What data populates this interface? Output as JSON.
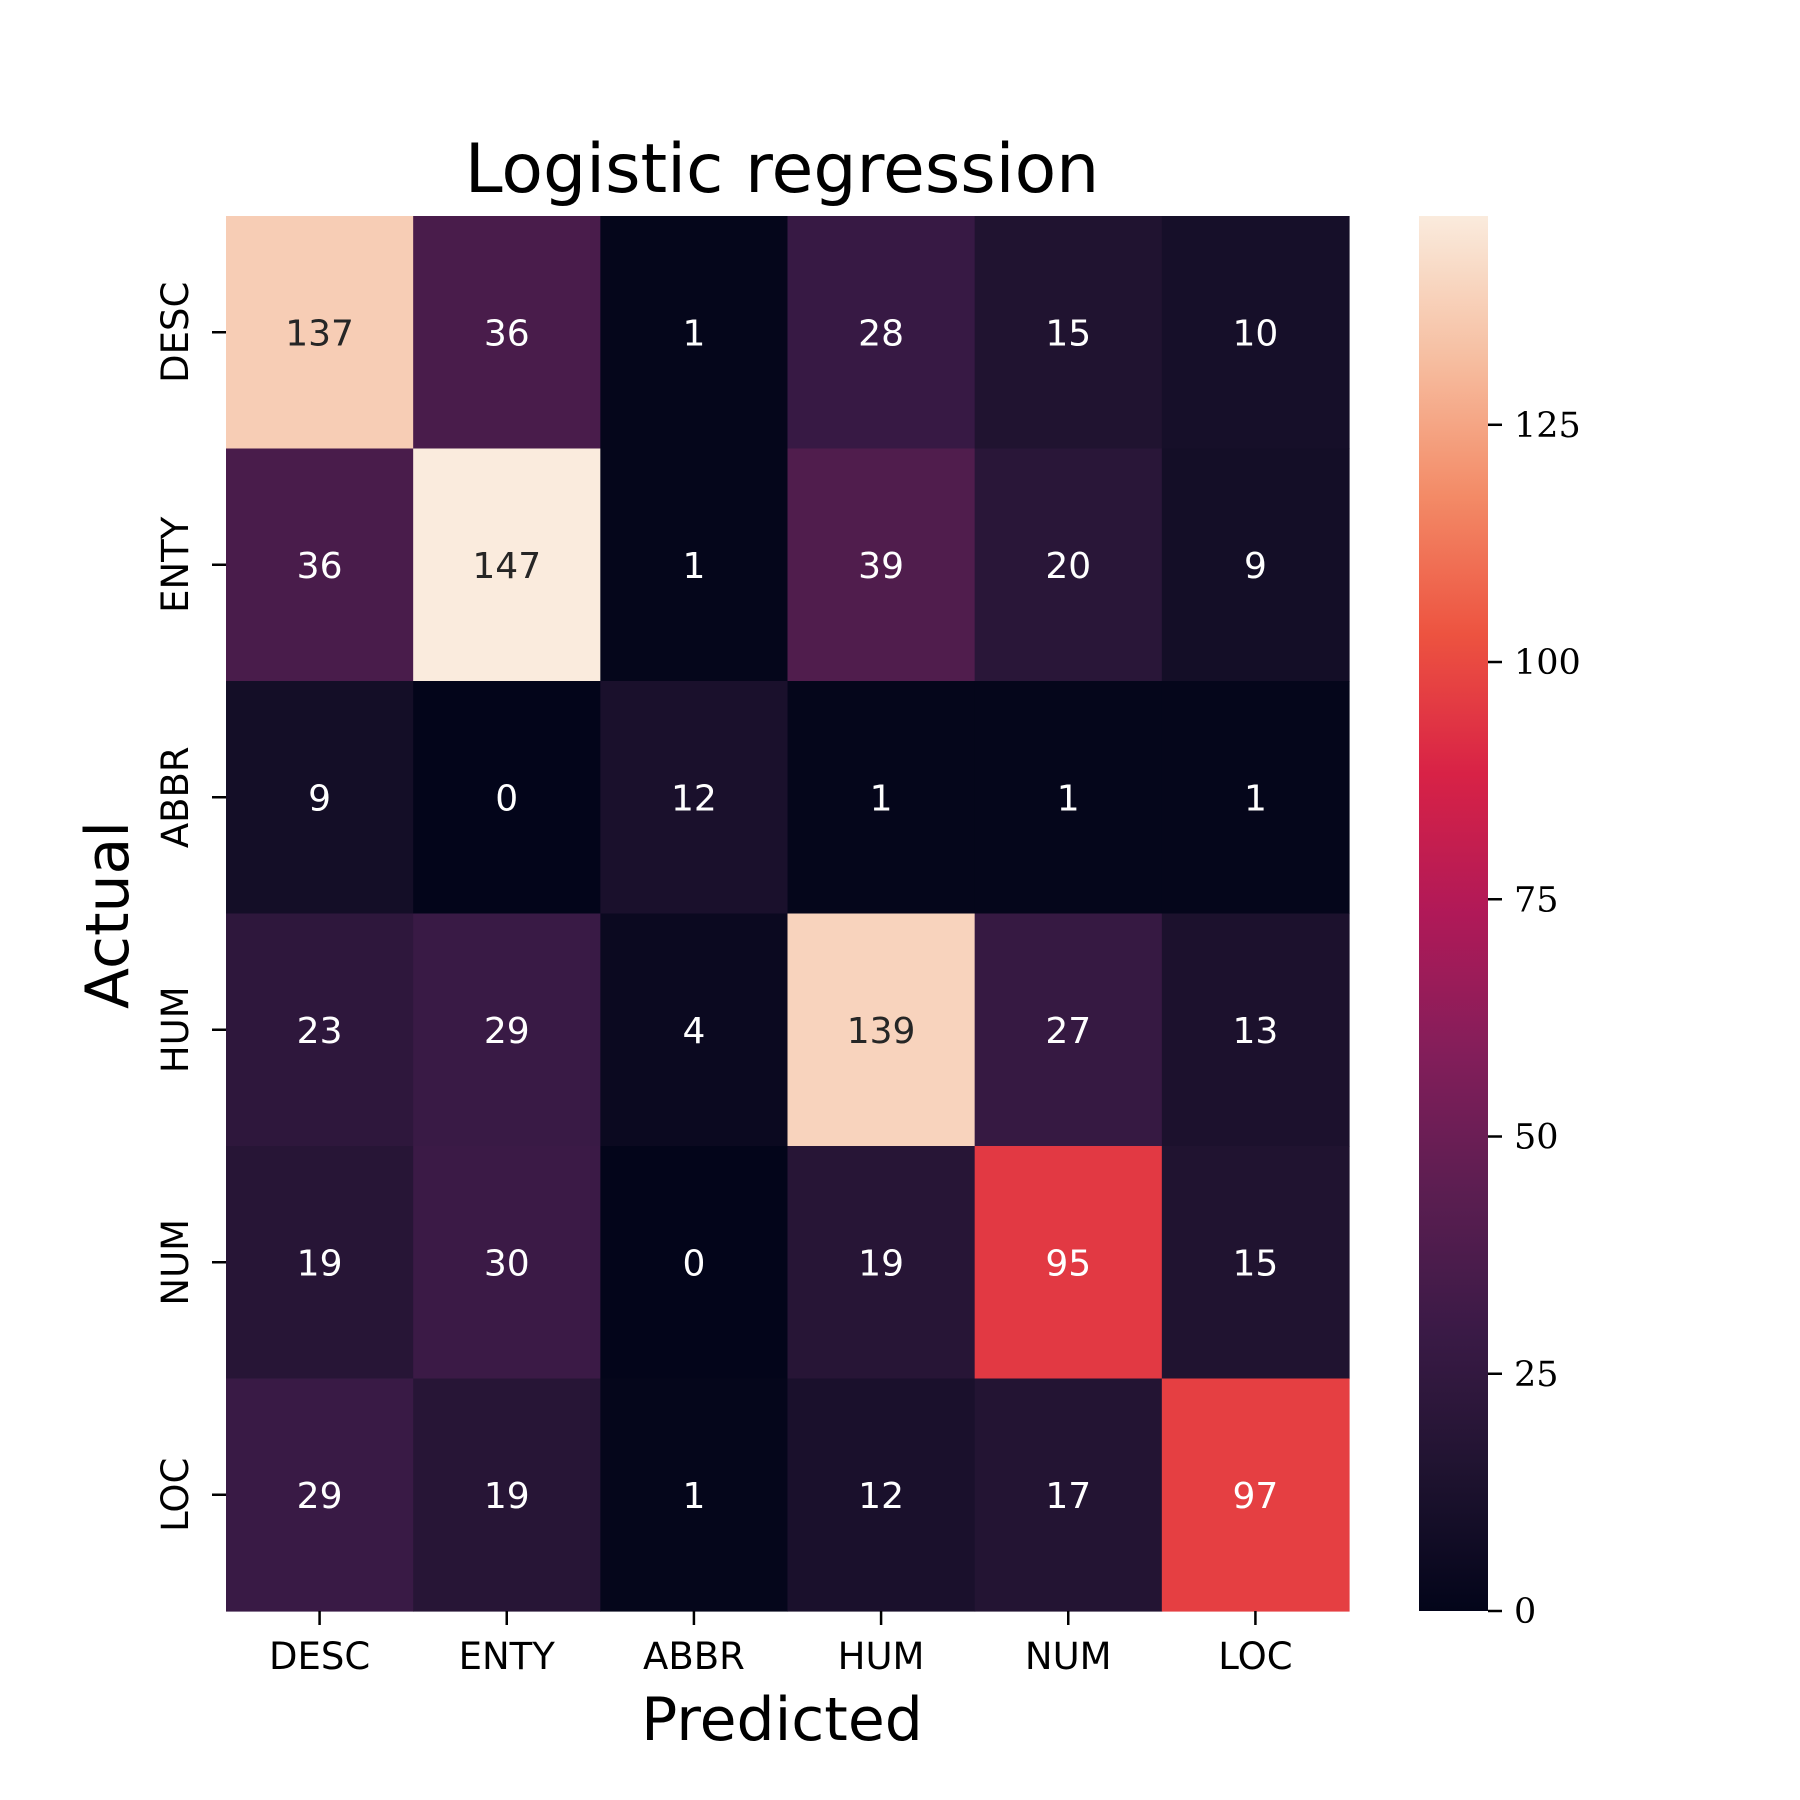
{
  "chart_data": {
    "type": "heatmap",
    "title": "Logistic regression",
    "xlabel": "Predicted",
    "ylabel": "Actual",
    "x_categories": [
      "DESC",
      "ENTY",
      "ABBR",
      "HUM",
      "NUM",
      "LOC"
    ],
    "y_categories": [
      "DESC",
      "ENTY",
      "ABBR",
      "HUM",
      "NUM",
      "LOC"
    ],
    "values": [
      [
        137,
        36,
        1,
        28,
        15,
        10
      ],
      [
        36,
        147,
        1,
        39,
        20,
        9
      ],
      [
        9,
        0,
        12,
        1,
        1,
        1
      ],
      [
        23,
        29,
        4,
        139,
        27,
        13
      ],
      [
        19,
        30,
        0,
        19,
        95,
        15
      ],
      [
        29,
        19,
        1,
        12,
        17,
        97
      ]
    ],
    "colormap": "rocket",
    "color_range": [
      0,
      147
    ],
    "colorbar_ticks": [
      0,
      25,
      50,
      75,
      100,
      125
    ],
    "annotations": true
  }
}
